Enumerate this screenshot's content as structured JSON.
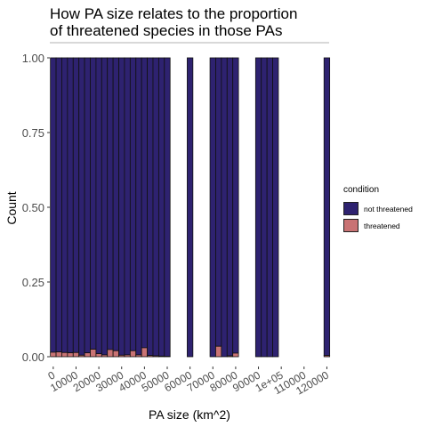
{
  "colors": {
    "not_threatened": "#2e2270",
    "threatened": "#c97374",
    "bar_border": "#111111",
    "axis_text": "#4d4d4d"
  },
  "chart_data": {
    "type": "bar",
    "stacked": true,
    "title": "How PA size relates to the proportion\nof threatened species in those PAs",
    "xlabel": "PA size (km^2)",
    "ylabel": "Count",
    "xlim": [
      -1500,
      121000
    ],
    "ylim": [
      0,
      1
    ],
    "x_ticks": [
      {
        "value": 0,
        "label": "0"
      },
      {
        "value": 10000,
        "label": "10000"
      },
      {
        "value": 20000,
        "label": "20000"
      },
      {
        "value": 30000,
        "label": "30000"
      },
      {
        "value": 40000,
        "label": "40000"
      },
      {
        "value": 50000,
        "label": "50000"
      },
      {
        "value": 60000,
        "label": "60000"
      },
      {
        "value": 70000,
        "label": "70000"
      },
      {
        "value": 80000,
        "label": "80000"
      },
      {
        "value": 90000,
        "label": "90000"
      },
      {
        "value": 100000,
        "label": "1e+05"
      },
      {
        "value": 110000,
        "label": "110000"
      },
      {
        "value": 120000,
        "label": "120000"
      }
    ],
    "y_ticks": [
      {
        "value": 0,
        "label": "0.00"
      },
      {
        "value": 0.25,
        "label": "0.25"
      },
      {
        "value": 0.5,
        "label": "0.50"
      },
      {
        "value": 0.75,
        "label": "0.75"
      },
      {
        "value": 1,
        "label": "1.00"
      }
    ],
    "legend": {
      "title": "condition",
      "position": "right",
      "items": [
        {
          "key": "not_threatened",
          "label": "not threatened"
        },
        {
          "key": "threatened",
          "label": "threatened"
        }
      ]
    },
    "bin_width": 2500,
    "x": [
      0,
      2500,
      5000,
      7500,
      10000,
      12500,
      15000,
      17500,
      20000,
      22500,
      25000,
      27500,
      30000,
      32500,
      35000,
      37500,
      40000,
      42500,
      45000,
      47500,
      50000,
      60000,
      70000,
      72500,
      75000,
      77500,
      80000,
      90000,
      92500,
      95000,
      97500,
      120000
    ],
    "series": [
      {
        "key": "threatened",
        "values": [
          0.015,
          0.016,
          0.014,
          0.013,
          0.014,
          0.005,
          0.013,
          0.025,
          0.01,
          0.006,
          0.024,
          0.02,
          0.005,
          0.006,
          0.02,
          0.006,
          0.03,
          0.004,
          0.003,
          0.002,
          0.001,
          0,
          0,
          0.035,
          0,
          0.003,
          0.012,
          0,
          0,
          0,
          0,
          0.004
        ]
      },
      {
        "key": "not_threatened",
        "values": [
          0.985,
          0.984,
          0.986,
          0.987,
          0.986,
          0.995,
          0.987,
          0.975,
          0.99,
          0.994,
          0.976,
          0.98,
          0.995,
          0.994,
          0.98,
          0.994,
          0.97,
          0.996,
          0.997,
          0.998,
          0.999,
          1,
          1,
          0.965,
          1,
          0.997,
          0.988,
          1,
          1,
          1,
          1,
          0.996
        ]
      }
    ]
  }
}
